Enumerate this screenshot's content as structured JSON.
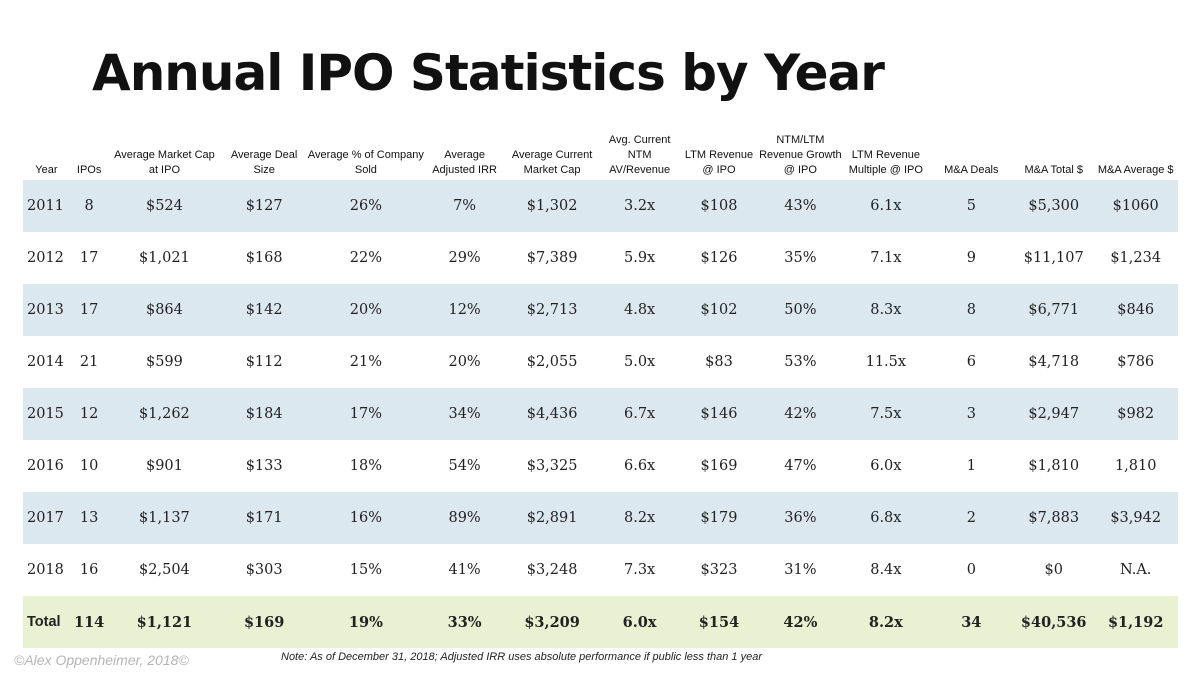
{
  "title": "Annual IPO Statistics by Year",
  "headers": [
    "Year",
    "IPOs",
    "Average Market Cap at IPO",
    "Average Deal Size",
    "Average % of Company Sold",
    "Average Adjusted IRR",
    "Average Current Market Cap",
    "Avg. Current NTM AV/Revenue",
    "LTM Revenue @ IPO",
    "NTM/LTM Revenue Growth @ IPO",
    "LTM Revenue Multiple @ IPO",
    "M&A Deals",
    "M&A Total $",
    "M&A Average $"
  ],
  "rows": [
    [
      "2011",
      "8",
      "$524",
      "$127",
      "26%",
      "7%",
      "$1,302",
      "3.2x",
      "$108",
      "43%",
      "6.1x",
      "5",
      "$5,300",
      "$1060"
    ],
    [
      "2012",
      "17",
      "$1,021",
      "$168",
      "22%",
      "29%",
      "$7,389",
      "5.9x",
      "$126",
      "35%",
      "7.1x",
      "9",
      "$11,107",
      "$1,234"
    ],
    [
      "2013",
      "17",
      "$864",
      "$142",
      "20%",
      "12%",
      "$2,713",
      "4.8x",
      "$102",
      "50%",
      "8.3x",
      "8",
      "$6,771",
      "$846"
    ],
    [
      "2014",
      "21",
      "$599",
      "$112",
      "21%",
      "20%",
      "$2,055",
      "5.0x",
      "$83",
      "53%",
      "11.5x",
      "6",
      "$4,718",
      "$786"
    ],
    [
      "2015",
      "12",
      "$1,262",
      "$184",
      "17%",
      "34%",
      "$4,436",
      "6.7x",
      "$146",
      "42%",
      "7.5x",
      "3",
      "$2,947",
      "$982"
    ],
    [
      "2016",
      "10",
      "$901",
      "$133",
      "18%",
      "54%",
      "$3,325",
      "6.6x",
      "$169",
      "47%",
      "6.0x",
      "1",
      "$1,810",
      "1,810"
    ],
    [
      "2017",
      "13",
      "$1,137",
      "$171",
      "16%",
      "89%",
      "$2,891",
      "8.2x",
      "$179",
      "36%",
      "6.8x",
      "2",
      "$7,883",
      "$3,942"
    ],
    [
      "2018",
      "16",
      "$2,504",
      "$303",
      "15%",
      "41%",
      "$3,248",
      "7.3x",
      "$323",
      "31%",
      "8.4x",
      "0",
      "$0",
      "N.A."
    ]
  ],
  "total": [
    "Total",
    "114",
    "$1,121",
    "$169",
    "19%",
    "33%",
    "$3,209",
    "6.0x",
    "$154",
    "42%",
    "8.2x",
    "34",
    "$40,536",
    "$1,192"
  ],
  "footer": {
    "copyright": "©Alex Oppenheimer, 2018©",
    "note": "Note: As of December 31, 2018; Adjusted IRR uses absolute performance if public less than 1 year"
  },
  "colors": {
    "band_row": "#dce8f0",
    "total_row": "#eaf1d3",
    "copyright_text": "#b5b5b5"
  }
}
